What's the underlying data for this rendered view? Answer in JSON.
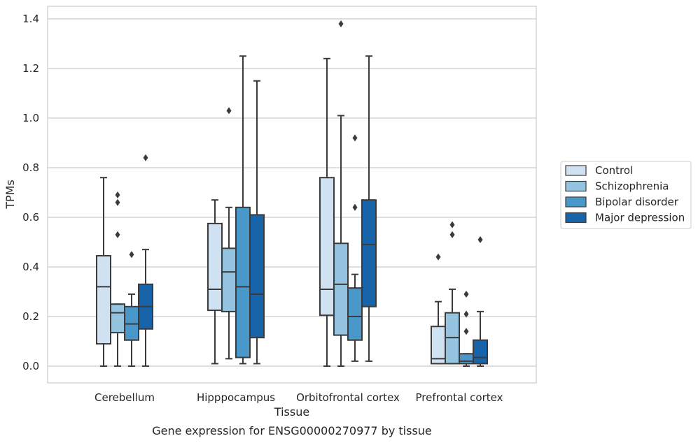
{
  "chart_data": {
    "type": "box",
    "title": "",
    "caption": "Gene expression for ENSG00000270977 by tissue",
    "xlabel": "Tissue",
    "ylabel": "TPMs",
    "ylim": [
      -0.065,
      1.45
    ],
    "yticks": [
      0.0,
      0.2,
      0.4,
      0.6,
      0.8,
      1.0,
      1.2,
      1.4
    ],
    "ytick_labels": [
      "0.0",
      "0.2",
      "0.4",
      "0.6",
      "0.8",
      "1.0",
      "1.2",
      "1.4"
    ],
    "grid": true,
    "legend_position": "right",
    "categories": [
      "Cerebellum",
      "Hipppocampus",
      "Orbitofrontal cortex",
      "Prefrontal cortex"
    ],
    "series": [
      {
        "name": "Control",
        "color": "#d0e1f2",
        "boxes": [
          {
            "whislo": 0.0,
            "q1": 0.09,
            "med": 0.32,
            "q3": 0.445,
            "whishi": 0.76,
            "fliers": []
          },
          {
            "whislo": 0.01,
            "q1": 0.225,
            "med": 0.31,
            "q3": 0.575,
            "whishi": 0.67,
            "fliers": []
          },
          {
            "whislo": 0.0,
            "q1": 0.205,
            "med": 0.31,
            "q3": 0.76,
            "whishi": 1.24,
            "fliers": []
          },
          {
            "whislo": 0.01,
            "q1": 0.01,
            "med": 0.03,
            "q3": 0.16,
            "whishi": 0.26,
            "fliers": [
              0.44
            ]
          }
        ]
      },
      {
        "name": "Schizophrenia",
        "color": "#94c4df",
        "boxes": [
          {
            "whislo": 0.0,
            "q1": 0.135,
            "med": 0.215,
            "q3": 0.25,
            "whishi": 0.25,
            "fliers": [
              0.53,
              0.66,
              0.69
            ]
          },
          {
            "whislo": 0.03,
            "q1": 0.22,
            "med": 0.38,
            "q3": 0.475,
            "whishi": 0.64,
            "fliers": [
              1.03
            ]
          },
          {
            "whislo": 0.0,
            "q1": 0.125,
            "med": 0.33,
            "q3": 0.495,
            "whishi": 1.01,
            "fliers": [
              1.38
            ]
          },
          {
            "whislo": 0.01,
            "q1": 0.01,
            "med": 0.115,
            "q3": 0.215,
            "whishi": 0.31,
            "fliers": [
              0.53,
              0.57
            ]
          }
        ]
      },
      {
        "name": "Bipolar disorder",
        "color": "#4a98c9",
        "boxes": [
          {
            "whislo": 0.0,
            "q1": 0.105,
            "med": 0.17,
            "q3": 0.24,
            "whishi": 0.29,
            "fliers": [
              0.45
            ]
          },
          {
            "whislo": 0.01,
            "q1": 0.035,
            "med": 0.32,
            "q3": 0.64,
            "whishi": 1.25,
            "fliers": []
          },
          {
            "whislo": 0.02,
            "q1": 0.105,
            "med": 0.2,
            "q3": 0.315,
            "whishi": 0.37,
            "fliers": [
              0.64,
              0.92
            ]
          },
          {
            "whislo": 0.0,
            "q1": 0.01,
            "med": 0.02,
            "q3": 0.05,
            "whishi": 0.05,
            "fliers": [
              0.14,
              0.21,
              0.29
            ]
          }
        ]
      },
      {
        "name": "Major depression",
        "color": "#1764ab",
        "boxes": [
          {
            "whislo": 0.0,
            "q1": 0.15,
            "med": 0.24,
            "q3": 0.33,
            "whishi": 0.47,
            "fliers": [
              0.84
            ]
          },
          {
            "whislo": 0.01,
            "q1": 0.115,
            "med": 0.29,
            "q3": 0.61,
            "whishi": 1.15,
            "fliers": []
          },
          {
            "whislo": 0.02,
            "q1": 0.24,
            "med": 0.49,
            "q3": 0.67,
            "whishi": 1.25,
            "fliers": []
          },
          {
            "whislo": 0.0,
            "q1": 0.01,
            "med": 0.035,
            "q3": 0.105,
            "whishi": 0.22,
            "fliers": [
              0.51
            ]
          }
        ]
      }
    ]
  }
}
